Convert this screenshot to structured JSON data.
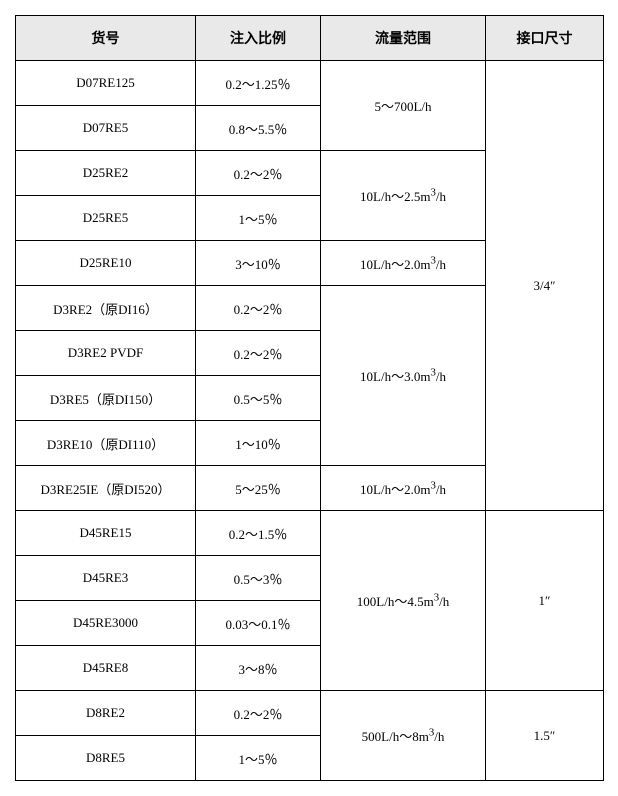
{
  "headers": {
    "col1": "货号",
    "col2": "注入比例",
    "col3": "流量范围",
    "col4": "接口尺寸"
  },
  "range_text": {
    "r1": "5～700L/h",
    "r2_html": "10L/h～2.5m<sup>3</sup>/h",
    "r3_html": "10L/h～2.0m<sup>3</sup>/h",
    "r4_html": "10L/h～3.0m<sup>3</sup>/h",
    "r5_html": "10L/h～2.0m<sup>3</sup>/h",
    "r6_html": "100L/h～4.5m<sup>3</sup>/h",
    "r7_html": "500L/h～8m<sup>3</sup>/h"
  },
  "iface": {
    "a": "3/4″",
    "b": "1″",
    "c": "1.5″"
  },
  "rows": {
    "1": {
      "code": "D07RE125",
      "ratio": "0.2～1.25％"
    },
    "2": {
      "code": "D07RE5",
      "ratio": "0.8～5.5％"
    },
    "3": {
      "code": "D25RE2",
      "ratio": "0.2～2％"
    },
    "4": {
      "code": "D25RE5",
      "ratio": "1～5％"
    },
    "5": {
      "code": "D25RE10",
      "ratio": "3～10％"
    },
    "6": {
      "code": "D3RE2（原DI16）",
      "ratio": "0.2～2％"
    },
    "7": {
      "code": "D3RE2 PVDF",
      "ratio": "0.2～2％"
    },
    "8": {
      "code": "D3RE5（原DI150）",
      "ratio": "0.5～5％"
    },
    "9": {
      "code": "D3RE10（原DI110）",
      "ratio": "1～10％"
    },
    "10": {
      "code": "D3RE25IE（原DI520）",
      "ratio": "5～25％"
    },
    "11": {
      "code": "D45RE15",
      "ratio": "0.2～1.5％"
    },
    "12": {
      "code": "D45RE3",
      "ratio": "0.5～3％"
    },
    "13": {
      "code": "D45RE3000",
      "ratio": "0.03～0.1％"
    },
    "14": {
      "code": "D45RE8",
      "ratio": "3～8％"
    },
    "15": {
      "code": "D8RE2",
      "ratio": "0.2～2％"
    },
    "16": {
      "code": "D8RE5",
      "ratio": "1～5％"
    }
  }
}
